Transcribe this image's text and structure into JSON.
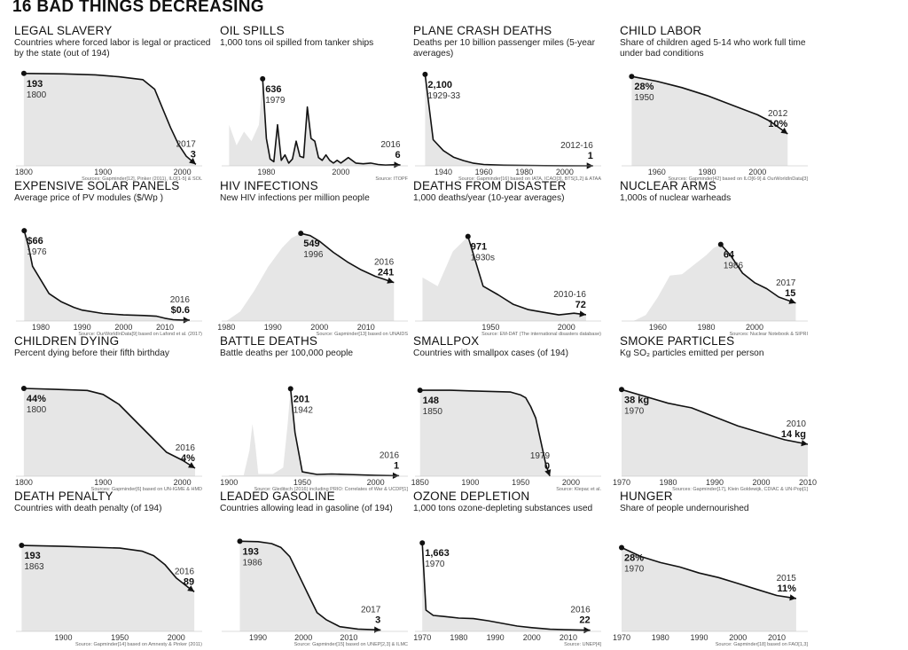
{
  "page_title": "16 BAD THINGS DECREASING",
  "chart_data": [
    {
      "type": "area",
      "title": "LEGAL SLAVERY",
      "subtitle": "Countries where forced labor is legal or practiced by the state (out of 194)",
      "xlim": [
        1790,
        2025
      ],
      "ylim": [
        0,
        200
      ],
      "xticks": [
        "1800",
        "1900",
        "2000"
      ],
      "x": [
        1800,
        1850,
        1890,
        1920,
        1950,
        1965,
        1975,
        1985,
        1995,
        2005,
        2017
      ],
      "y": [
        193,
        192,
        190,
        186,
        180,
        160,
        120,
        80,
        45,
        20,
        3
      ],
      "start_label": {
        "value": "193",
        "year": "1800",
        "x": 1800,
        "y": 193
      },
      "end_label": {
        "value": "3",
        "year": "2017",
        "x": 2017,
        "y": 3
      },
      "source": "Sources: Gapminder[12], Pinker (2011), ILO[1-5] & SOL"
    },
    {
      "type": "area",
      "title": "OIL SPILLS",
      "subtitle": "1,000 tons oil spilled from tanker ships",
      "xlim": [
        1968,
        2018
      ],
      "ylim": [
        0,
        700
      ],
      "xticks": [
        "1980",
        "2000"
      ],
      "x": [
        1970,
        1972,
        1974,
        1976,
        1978,
        1979,
        1980,
        1981,
        1982,
        1983,
        1984,
        1985,
        1986,
        1987,
        1988,
        1989,
        1990,
        1991,
        1992,
        1993,
        1994,
        1995,
        1996,
        1997,
        1998,
        1999,
        2000,
        2002,
        2004,
        2006,
        2008,
        2010,
        2012,
        2014,
        2016
      ],
      "y": [
        300,
        150,
        250,
        180,
        300,
        636,
        200,
        50,
        30,
        300,
        40,
        80,
        20,
        50,
        180,
        70,
        60,
        430,
        200,
        180,
        60,
        40,
        80,
        40,
        20,
        40,
        20,
        60,
        20,
        15,
        20,
        10,
        5,
        8,
        6
      ],
      "start_label": {
        "value": "636",
        "year": "1979",
        "x": 1979,
        "y": 636
      },
      "end_label": {
        "value": "6",
        "year": "2016",
        "x": 2016,
        "y": 6
      },
      "source": "Source: ITOPF"
    },
    {
      "type": "area",
      "title": "PLANE CRASH DEATHS",
      "subtitle": "Deaths per 10 billion passenger miles (5-year averages)",
      "xlim": [
        1926,
        2018
      ],
      "ylim": [
        0,
        2200
      ],
      "xticks": [
        "1940",
        "1960",
        "1980",
        "2000"
      ],
      "x": [
        1931,
        1935,
        1940,
        1945,
        1950,
        1955,
        1960,
        1970,
        1980,
        1990,
        2000,
        2014
      ],
      "y": [
        2100,
        600,
        350,
        200,
        120,
        60,
        30,
        15,
        8,
        4,
        2,
        1
      ],
      "start_label": {
        "value": "2,100",
        "year": "1929-33",
        "x": 1931,
        "y": 2100
      },
      "end_label": {
        "value": "1",
        "year": "2012-16",
        "x": 2014,
        "y": 1
      },
      "source": "Source: Gapminder[16] based on IATA, ICAO[3], BTS[1,2] & ATAA"
    },
    {
      "type": "area",
      "title": "CHILD LABOR",
      "subtitle": "Share of children aged 5-14 who work full time under bad conditions",
      "xlim": [
        1946,
        2020
      ],
      "ylim": [
        0,
        30
      ],
      "xticks": [
        "1960",
        "1980",
        "2000"
      ],
      "x": [
        1950,
        1960,
        1970,
        1980,
        1990,
        2000,
        2005,
        2012
      ],
      "y": [
        28,
        26.5,
        24.5,
        22,
        19,
        16,
        14,
        10
      ],
      "start_label": {
        "value": "28%",
        "year": "1950",
        "x": 1950,
        "y": 28
      },
      "end_label": {
        "value": "10%",
        "year": "2012",
        "x": 2012,
        "y": 10
      },
      "source": "Sources: Gapminder[42] based on ILO[6-9] & OurWorldInData[3]"
    },
    {
      "type": "area",
      "title": "EXPENSIVE SOLAR PANELS",
      "subtitle": "Average price of PV modules ($/Wp )",
      "xlim": [
        1974,
        2019
      ],
      "ylim": [
        0,
        70
      ],
      "xticks": [
        "1980",
        "1990",
        "2000",
        "2010"
      ],
      "x": [
        1976,
        1977,
        1978,
        1980,
        1982,
        1985,
        1988,
        1990,
        1995,
        2000,
        2005,
        2008,
        2010,
        2012,
        2014,
        2016
      ],
      "y": [
        66,
        55,
        40,
        30,
        20,
        14,
        10,
        8,
        5.5,
        4.5,
        4.0,
        3.5,
        2.0,
        1.0,
        0.7,
        0.6
      ],
      "start_label": {
        "value": "$66",
        "year": "1976",
        "x": 1976,
        "y": 66
      },
      "end_label": {
        "value": "$0.6",
        "year": "2016",
        "x": 2016,
        "y": 0.6
      },
      "source": "Source: OurWorldInData[9] based on Lafond et al. (2017)"
    },
    {
      "type": "area",
      "title": "HIV INFECTIONS",
      "subtitle": "New HIV infections per million people",
      "xlim": [
        1979,
        2019
      ],
      "ylim": [
        0,
        600
      ],
      "xticks": [
        "1980",
        "1990",
        "2000",
        "2010"
      ],
      "x": [
        1980,
        1983,
        1986,
        1989,
        1992,
        1994,
        1996,
        1998,
        2000,
        2003,
        2006,
        2009,
        2012,
        2016
      ],
      "y": [
        0,
        60,
        190,
        340,
        460,
        520,
        549,
        535,
        500,
        430,
        370,
        320,
        280,
        241
      ],
      "start_label": {
        "value": "549",
        "year": "1996",
        "x": 1996,
        "y": 549
      },
      "end_label": {
        "value": "241",
        "year": "2016",
        "x": 2016,
        "y": 241
      },
      "source": "Source: Gapminder[13] based on UNAIDS"
    },
    {
      "type": "area",
      "title": "DEATHS FROM DISASTER",
      "subtitle": "1,000 deaths/year (10-year averages)",
      "xlim": [
        1900,
        2023
      ],
      "ylim": [
        0,
        1100
      ],
      "xticks": [
        "1950",
        "2000"
      ],
      "x": [
        1905,
        1915,
        1925,
        1935,
        1945,
        1955,
        1965,
        1975,
        1985,
        1995,
        2005,
        2013
      ],
      "y": [
        500,
        400,
        800,
        971,
        400,
        300,
        190,
        130,
        100,
        70,
        90,
        72
      ],
      "start_label": {
        "value": "971",
        "year": "1930s",
        "x": 1935,
        "y": 971
      },
      "end_label": {
        "value": "72",
        "year": "2010-16",
        "x": 2013,
        "y": 72
      },
      "source": "Source: EM-DAT (The international disasters database)"
    },
    {
      "type": "area",
      "title": "NUCLEAR ARMS",
      "subtitle": "1,000s of nuclear warheads",
      "xlim": [
        1945,
        2022
      ],
      "ylim": [
        0,
        80
      ],
      "xticks": [
        "1960",
        "1980",
        "2000"
      ],
      "x": [
        1950,
        1955,
        1960,
        1965,
        1970,
        1975,
        1980,
        1983,
        1986,
        1990,
        1995,
        2000,
        2005,
        2010,
        2017
      ],
      "y": [
        0,
        5,
        20,
        38,
        39,
        47,
        55,
        61,
        64,
        55,
        40,
        32,
        27,
        20,
        15
      ],
      "start_label": {
        "value": "64",
        "year": "1986",
        "x": 1986,
        "y": 64
      },
      "end_label": {
        "value": "15",
        "year": "2017",
        "x": 2017,
        "y": 15
      },
      "source": "Sources: Nuclear Notebook & SIPRI"
    },
    {
      "type": "area",
      "title": "CHILDREN DYING",
      "subtitle": "Percent dying before their fifth birthday",
      "xlim": [
        1790,
        2025
      ],
      "ylim": [
        0,
        48
      ],
      "xticks": [
        "1800",
        "1900",
        "2000"
      ],
      "x": [
        1800,
        1840,
        1880,
        1900,
        1920,
        1940,
        1960,
        1980,
        2000,
        2016
      ],
      "y": [
        44,
        43.5,
        43,
        41,
        36,
        28,
        20,
        12,
        8,
        4
      ],
      "start_label": {
        "value": "44%",
        "year": "1800",
        "x": 1800,
        "y": 44
      },
      "end_label": {
        "value": "4%",
        "year": "2016",
        "x": 2016,
        "y": 4
      },
      "source": "Sources: Gapminder[6] based on UN-IGME & HMD"
    },
    {
      "type": "area",
      "title": "BATTLE DEATHS",
      "subtitle": "Battle deaths per 100,000 people",
      "xlim": [
        1895,
        2022
      ],
      "ylim": [
        0,
        220
      ],
      "xticks": [
        "1900",
        "1950",
        "2000"
      ],
      "x": [
        1900,
        1910,
        1914,
        1916,
        1918,
        1920,
        1930,
        1937,
        1940,
        1942,
        1945,
        1950,
        1960,
        1970,
        1980,
        1990,
        2000,
        2016
      ],
      "y": [
        2,
        2,
        60,
        120,
        70,
        5,
        5,
        20,
        120,
        201,
        100,
        10,
        4,
        5,
        4,
        3,
        2,
        1
      ],
      "start_label": {
        "value": "201",
        "year": "1942",
        "x": 1942,
        "y": 201
      },
      "end_label": {
        "value": "1",
        "year": "2016",
        "x": 2016,
        "y": 1
      },
      "source": "Source: Gleditsch (2016) including PRIO: Correlates of War & UCDP[1]"
    },
    {
      "type": "area",
      "title": "SMALLPOX",
      "subtitle": "Countries with smallpox cases (of 194)",
      "xlim": [
        1845,
        2030
      ],
      "ylim": [
        0,
        165
      ],
      "xticks": [
        "1850",
        "1900",
        "1950",
        "2000"
      ],
      "x": [
        1850,
        1880,
        1900,
        1920,
        1940,
        1950,
        1955,
        1960,
        1965,
        1970,
        1975,
        1979
      ],
      "y": [
        148,
        148,
        147,
        146,
        145,
        140,
        135,
        120,
        100,
        60,
        20,
        0
      ],
      "start_label": {
        "value": "148",
        "year": "1850",
        "x": 1850,
        "y": 148
      },
      "end_label": {
        "value": "0",
        "year": "1979",
        "x": 1979,
        "y": 0
      },
      "source": "Source: Klepac et al."
    },
    {
      "type": "area",
      "title": "SMOKE PARTICLES",
      "subtitle": "Kg SO₂ particles emitted per person",
      "xlim": [
        1970,
        2010
      ],
      "ylim": [
        0,
        42
      ],
      "xticks": [
        "1970",
        "1980",
        "1990",
        "2000",
        "2010"
      ],
      "x": [
        1970,
        1975,
        1980,
        1985,
        1990,
        1995,
        2000,
        2005,
        2010
      ],
      "y": [
        38,
        35,
        32,
        30,
        26,
        22,
        19,
        16,
        14
      ],
      "start_label": {
        "value": "38 kg",
        "year": "1970",
        "x": 1970,
        "y": 38
      },
      "end_label": {
        "value": "14 kg",
        "year": "2010",
        "x": 2010,
        "y": 14
      },
      "source": "Sources: Gapminder[17], Klein Goldewijk, CDIAC & UN-Pop[1]"
    },
    {
      "type": "area",
      "title": "DEATH PENALTY",
      "subtitle": "Countries with death penalty (of 194)",
      "xlim": [
        1858,
        2023
      ],
      "ylim": [
        0,
        215
      ],
      "xticks": [
        "1900",
        "1950",
        "2000"
      ],
      "x": [
        1863,
        1900,
        1950,
        1970,
        1980,
        1990,
        2000,
        2010,
        2016
      ],
      "y": [
        193,
        191,
        187,
        180,
        170,
        150,
        120,
        100,
        89
      ],
      "start_label": {
        "value": "193",
        "year": "1863",
        "x": 1863,
        "y": 193
      },
      "end_label": {
        "value": "89",
        "year": "2016",
        "x": 2016,
        "y": 89
      },
      "source": "Source: Gapminder[14] based on Amnesty & Pinker (2011)"
    },
    {
      "type": "area",
      "title": "LEADED GASOLINE",
      "subtitle": "Countries allowing lead in gasoline (of 194)",
      "xlim": [
        1982,
        2023
      ],
      "ylim": [
        0,
        205
      ],
      "xticks": [
        "1990",
        "2000",
        "2010"
      ],
      "x": [
        1986,
        1990,
        1993,
        1995,
        1997,
        1999,
        2001,
        2003,
        2005,
        2008,
        2012,
        2017
      ],
      "y": [
        193,
        192,
        188,
        180,
        160,
        120,
        80,
        40,
        25,
        10,
        5,
        3
      ],
      "start_label": {
        "value": "193",
        "year": "1986",
        "x": 1986,
        "y": 193
      },
      "end_label": {
        "value": "3",
        "year": "2017",
        "x": 2017,
        "y": 3
      },
      "source": "Source: Gapminder[15] based on UNEP[2,3] & ILMC"
    },
    {
      "type": "area",
      "title": "OZONE DEPLETION",
      "subtitle": "1,000 tons ozone-depleting substances used",
      "xlim": [
        1968,
        2019
      ],
      "ylim": [
        0,
        1800
      ],
      "xticks": [
        "1970",
        "1980",
        "1990",
        "2000",
        "2010"
      ],
      "x": [
        1970,
        1971,
        1973,
        1976,
        1980,
        1984,
        1988,
        1992,
        1996,
        2000,
        2005,
        2010,
        2016
      ],
      "y": [
        1663,
        400,
        300,
        280,
        250,
        240,
        200,
        150,
        100,
        70,
        40,
        30,
        22
      ],
      "start_label": {
        "value": "1,663",
        "year": "1970",
        "x": 1970,
        "y": 1663
      },
      "end_label": {
        "value": "22",
        "year": "2016",
        "x": 2016,
        "y": 22
      },
      "source": "Source: UNEP[4]"
    },
    {
      "type": "area",
      "title": "HUNGER",
      "subtitle": "Share of people undernourished",
      "xlim": [
        1970,
        2018
      ],
      "ylim": [
        0,
        32
      ],
      "xticks": [
        "1970",
        "1980",
        "1990",
        "2000",
        "2010"
      ],
      "x": [
        1970,
        1975,
        1980,
        1985,
        1990,
        1995,
        2000,
        2005,
        2010,
        2015
      ],
      "y": [
        28,
        25,
        23,
        21.5,
        19.5,
        18,
        16,
        14,
        12,
        11
      ],
      "start_label": {
        "value": "28%",
        "year": "1970",
        "x": 1970,
        "y": 28
      },
      "end_label": {
        "value": "11%",
        "year": "2015",
        "x": 2015,
        "y": 11
      },
      "source": "Source: Gapminder[18] based on FAO[1,3]"
    }
  ]
}
